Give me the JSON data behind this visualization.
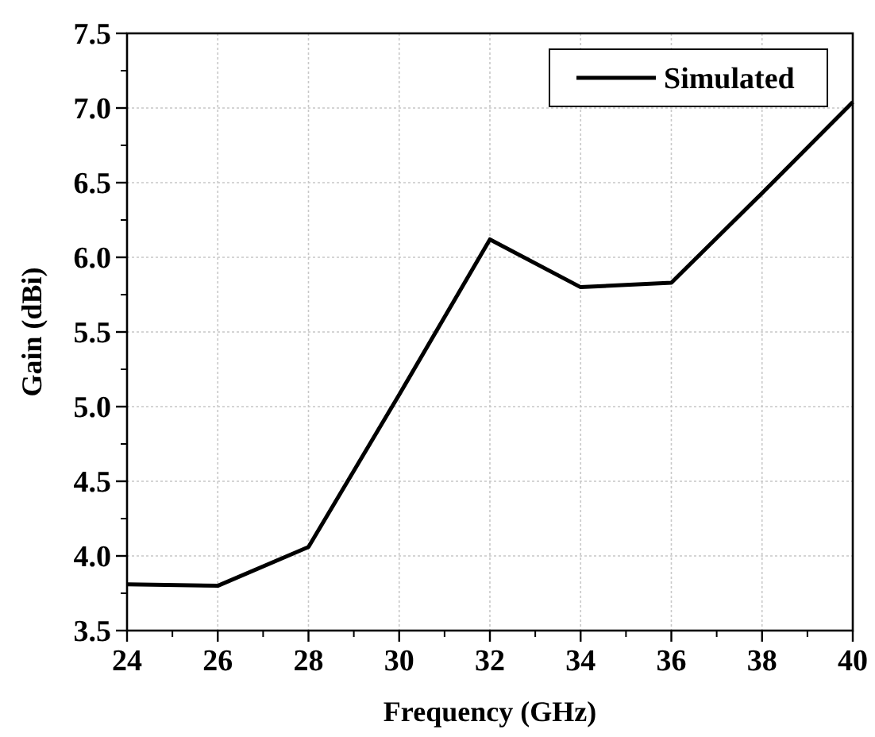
{
  "chart_data": {
    "type": "line",
    "xlabel": "Frequency (GHz)",
    "ylabel": "Gain (dBi)",
    "x": [
      24,
      26,
      28,
      30,
      32,
      34,
      36,
      38,
      40
    ],
    "series": [
      {
        "name": "Simulated",
        "color": "#000000",
        "values": [
          3.81,
          3.8,
          4.06,
          5.08,
          6.12,
          5.8,
          5.83,
          6.43,
          7.04
        ]
      }
    ],
    "xlim": [
      24,
      40
    ],
    "xticks": [
      24,
      26,
      28,
      30,
      32,
      34,
      36,
      38,
      40
    ],
    "ylim": [
      3.5,
      7.5
    ],
    "yticks": [
      {
        "value": 3.5,
        "label": "3.5"
      },
      {
        "value": 4,
        "label": "4.0"
      },
      {
        "value": 4.5,
        "label": "4.5"
      },
      {
        "value": 5,
        "label": "5.0"
      },
      {
        "value": 5.5,
        "label": "5.5"
      },
      {
        "value": 6,
        "label": "6.0"
      },
      {
        "value": 6.5,
        "label": "6.5"
      },
      {
        "value": 7,
        "label": "7.0"
      },
      {
        "value": 7.5,
        "label": "7.5"
      }
    ],
    "grid": true,
    "legend": "top right",
    "marker": "none",
    "line_style": "solid"
  }
}
